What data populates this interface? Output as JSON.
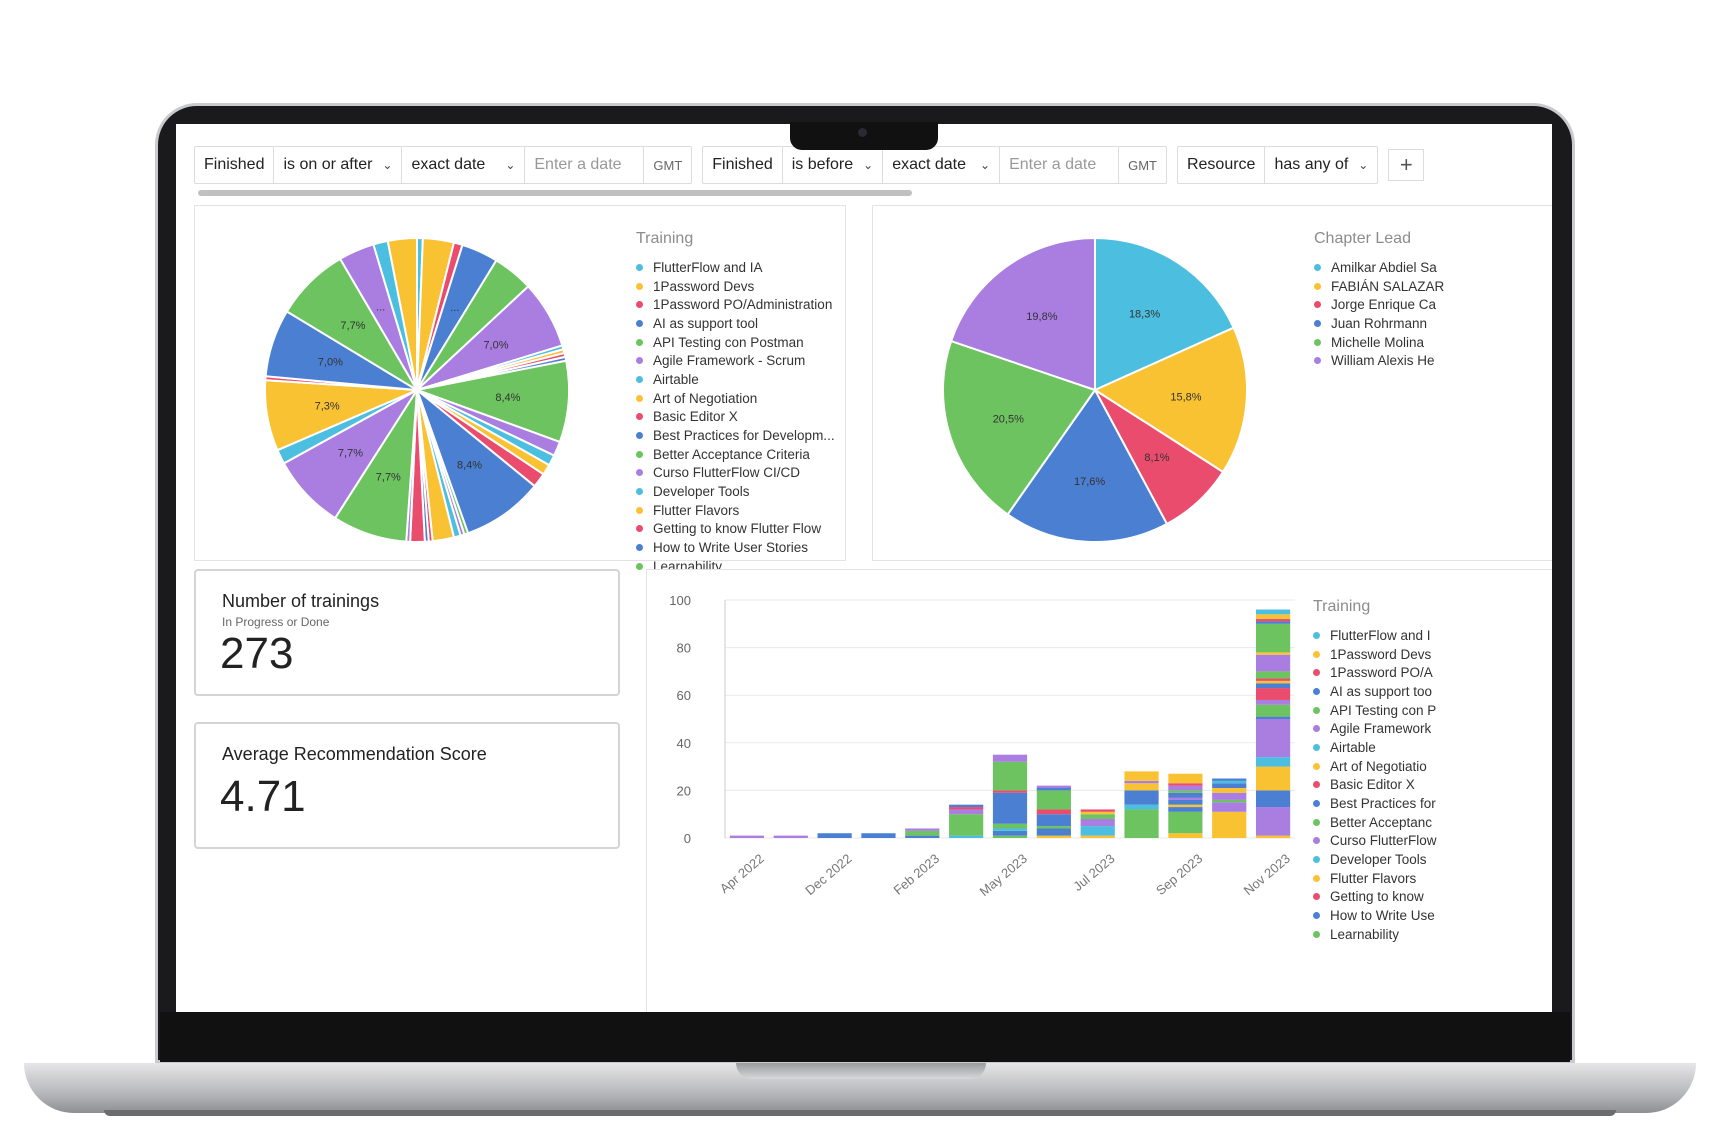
{
  "filters": [
    {
      "field": "Finished",
      "operator": "is on or after",
      "mode": "exact date",
      "placeholder": "Enter a date",
      "tz": "GMT"
    },
    {
      "field": "Finished",
      "operator": "is before",
      "mode": "exact date",
      "placeholder": "Enter a date",
      "tz": "GMT"
    },
    {
      "field": "Resource",
      "operator": "has any of"
    }
  ],
  "colors": {
    "cyan": "#4cbfe0",
    "yellow": "#f9c233",
    "pink": "#ea4c6d",
    "blue": "#4a7fd1",
    "green": "#6cc35f",
    "purple": "#a97ee0"
  },
  "training_chart": {
    "chart_data": {
      "type": "pie",
      "legend_title": "Training",
      "legend": [
        "FlutterFlow and IA",
        "1Password Devs",
        "1Password PO/Administration",
        "AI as support tool",
        "API Testing con Postman",
        "Agile Framework - Scrum",
        "Airtable",
        "Art of Negotiation",
        "Basic Editor X",
        "Best Practices for Developm...",
        "Better Acceptance Criteria",
        "Curso FlutterFlow CI/CD",
        "Developer Tools",
        "Flutter Flavors",
        "Getting to know Flutter Flow",
        "How to Write User Stories",
        "Learnability"
      ],
      "slices": [
        {
          "value": 0.6,
          "color": "#4cbfe0",
          "label": ""
        },
        {
          "value": 3.2,
          "color": "#f9c233",
          "label": ""
        },
        {
          "value": 0.9,
          "color": "#ea4c6d",
          "label": ""
        },
        {
          "value": 3.8,
          "color": "#4a7fd1",
          "label": "..."
        },
        {
          "value": 4.2,
          "color": "#6cc35f",
          "label": ""
        },
        {
          "value": 7.0,
          "color": "#a97ee0",
          "label": "7,0%"
        },
        {
          "value": 0.4,
          "color": "#4cbfe0",
          "label": ""
        },
        {
          "value": 0.4,
          "color": "#f9c233",
          "label": ""
        },
        {
          "value": 0.4,
          "color": "#ea4c6d",
          "label": ""
        },
        {
          "value": 0.4,
          "color": "#4a7fd1",
          "label": ""
        },
        {
          "value": 8.4,
          "color": "#6cc35f",
          "label": "8,4%"
        },
        {
          "value": 1.5,
          "color": "#a97ee0",
          "label": ""
        },
        {
          "value": 1.1,
          "color": "#4cbfe0",
          "label": ""
        },
        {
          "value": 1.1,
          "color": "#f9c233",
          "label": ""
        },
        {
          "value": 1.5,
          "color": "#ea4c6d",
          "label": ""
        },
        {
          "value": 8.4,
          "color": "#4a7fd1",
          "label": "8,4%"
        },
        {
          "value": 0.4,
          "color": "#6cc35f",
          "label": ""
        },
        {
          "value": 0.4,
          "color": "#a97ee0",
          "label": ""
        },
        {
          "value": 0.7,
          "color": "#4cbfe0",
          "label": ""
        },
        {
          "value": 2.2,
          "color": "#f9c233",
          "label": ""
        },
        {
          "value": 0.4,
          "color": "#ea4c6d",
          "label": ""
        },
        {
          "value": 0.4,
          "color": "#4a7fd1",
          "label": ""
        },
        {
          "value": 1.5,
          "color": "#ea4c6d",
          "label": ""
        },
        {
          "value": 0.4,
          "color": "#a97ee0",
          "label": ""
        },
        {
          "value": 7.7,
          "color": "#6cc35f",
          "label": "7,7%"
        },
        {
          "value": 7.7,
          "color": "#a97ee0",
          "label": "7,7%"
        },
        {
          "value": 1.5,
          "color": "#4cbfe0",
          "label": ""
        },
        {
          "value": 7.3,
          "color": "#f9c233",
          "label": "7,3%"
        },
        {
          "value": 0.4,
          "color": "#ea4c6d",
          "label": ""
        },
        {
          "value": 7.0,
          "color": "#4a7fd1",
          "label": "7,0%"
        },
        {
          "value": 7.7,
          "color": "#6cc35f",
          "label": "7,7%"
        },
        {
          "value": 3.7,
          "color": "#a97ee0",
          "label": "..."
        },
        {
          "value": 1.5,
          "color": "#4cbfe0",
          "label": ""
        },
        {
          "value": 3.0,
          "color": "#f9c233",
          "label": ""
        }
      ]
    }
  },
  "lead_chart": {
    "chart_data": {
      "type": "pie",
      "legend_title": "Chapter Lead",
      "legend": [
        "Amilkar Abdiel Sa",
        "FABIÁN SALAZAR",
        "Jorge Enrique Ca",
        "Juan Rohrmann",
        "Michelle Molina",
        "William Alexis He"
      ],
      "slices": [
        {
          "value": 18.3,
          "color": "#4cbfe0",
          "label": "18,3%"
        },
        {
          "value": 15.8,
          "color": "#f9c233",
          "label": "15,8%"
        },
        {
          "value": 8.1,
          "color": "#ea4c6d",
          "label": "8,1%"
        },
        {
          "value": 17.6,
          "color": "#4a7fd1",
          "label": "17,6%"
        },
        {
          "value": 20.5,
          "color": "#6cc35f",
          "label": "20,5%"
        },
        {
          "value": 19.8,
          "color": "#a97ee0",
          "label": "19,8%"
        }
      ]
    }
  },
  "kpis": {
    "trainings": {
      "title": "Number of trainings",
      "subtitle": "In Progress or Done",
      "value": "273"
    },
    "score": {
      "title": "Average Recommendation Score",
      "value": "4.71"
    }
  },
  "bar_chart": {
    "chart_data": {
      "type": "bar",
      "stacked": true,
      "legend_title": "Training",
      "legend": [
        "FlutterFlow and I",
        "1Password Devs",
        "1Password PO/A",
        "AI as support too",
        "API Testing con P",
        "Agile Framework",
        "Airtable",
        "Art of Negotiatio",
        "Basic Editor X",
        "Best Practices for",
        "Better Acceptanc",
        "Curso FlutterFlow",
        "Developer Tools",
        "Flutter Flavors",
        "Getting to know",
        "How to Write Use",
        "Learnability"
      ],
      "ylim": [
        0,
        100
      ],
      "yticks": [
        0,
        20,
        40,
        60,
        80,
        100
      ],
      "xtick_labels": [
        "Apr 2022",
        "Dec 2022",
        "Feb 2023",
        "May 2023",
        "Jul 2023",
        "Sep 2023",
        "Nov 2023"
      ],
      "categories": [
        "Apr 2022",
        "Aug 2022",
        "Dec 2022",
        "Jan 2023",
        "Feb 2023",
        "Apr 2023",
        "May 2023",
        "Jun 2023",
        "Jul 2023",
        "Aug 2023",
        "Sep 2023",
        "Oct 2023",
        "Nov 2023"
      ],
      "stacks": [
        [
          {
            "v": 1,
            "c": "#a97ee0"
          }
        ],
        [
          {
            "v": 1,
            "c": "#a97ee0"
          }
        ],
        [
          {
            "v": 2,
            "c": "#4a7fd1"
          }
        ],
        [
          {
            "v": 2,
            "c": "#4a7fd1"
          }
        ],
        [
          {
            "v": 1,
            "c": "#4a7fd1"
          },
          {
            "v": 2,
            "c": "#6cc35f"
          },
          {
            "v": 1,
            "c": "#a97ee0"
          }
        ],
        [
          {
            "v": 1,
            "c": "#4cbfe0"
          },
          {
            "v": 9,
            "c": "#6cc35f"
          },
          {
            "v": 2,
            "c": "#a97ee0"
          },
          {
            "v": 1,
            "c": "#ea4c6d"
          },
          {
            "v": 1,
            "c": "#4a7fd1"
          }
        ],
        [
          {
            "v": 1,
            "c": "#6cc35f"
          },
          {
            "v": 2,
            "c": "#4a7fd1"
          },
          {
            "v": 1,
            "c": "#4cbfe0"
          },
          {
            "v": 2,
            "c": "#6cc35f"
          },
          {
            "v": 13,
            "c": "#4a7fd1"
          },
          {
            "v": 1,
            "c": "#ea4c6d"
          },
          {
            "v": 12,
            "c": "#6cc35f"
          },
          {
            "v": 3,
            "c": "#a97ee0"
          }
        ],
        [
          {
            "v": 1,
            "c": "#f9c233"
          },
          {
            "v": 3,
            "c": "#4a7fd1"
          },
          {
            "v": 1,
            "c": "#6cc35f"
          },
          {
            "v": 5,
            "c": "#4a7fd1"
          },
          {
            "v": 2,
            "c": "#ea4c6d"
          },
          {
            "v": 8,
            "c": "#6cc35f"
          },
          {
            "v": 1,
            "c": "#4a7fd1"
          },
          {
            "v": 1,
            "c": "#a97ee0"
          }
        ],
        [
          {
            "v": 1,
            "c": "#f9c233"
          },
          {
            "v": 4,
            "c": "#4cbfe0"
          },
          {
            "v": 3,
            "c": "#a97ee0"
          },
          {
            "v": 2,
            "c": "#6cc35f"
          },
          {
            "v": 1,
            "c": "#f9c233"
          },
          {
            "v": 1,
            "c": "#ea4c6d"
          }
        ],
        [
          {
            "v": 12,
            "c": "#6cc35f"
          },
          {
            "v": 2,
            "c": "#4cbfe0"
          },
          {
            "v": 6,
            "c": "#4a7fd1"
          },
          {
            "v": 3,
            "c": "#f9c233"
          },
          {
            "v": 1,
            "c": "#a97ee0"
          },
          {
            "v": 4,
            "c": "#f9c233"
          }
        ],
        [
          {
            "v": 2,
            "c": "#f9c233"
          },
          {
            "v": 9,
            "c": "#6cc35f"
          },
          {
            "v": 2,
            "c": "#4a7fd1"
          },
          {
            "v": 1,
            "c": "#f9c233"
          },
          {
            "v": 2,
            "c": "#4a7fd1"
          },
          {
            "v": 1,
            "c": "#a97ee0"
          },
          {
            "v": 2,
            "c": "#4a7fd1"
          },
          {
            "v": 1,
            "c": "#6cc35f"
          },
          {
            "v": 2,
            "c": "#a97ee0"
          },
          {
            "v": 1,
            "c": "#ea4c6d"
          },
          {
            "v": 4,
            "c": "#f9c233"
          }
        ],
        [
          {
            "v": 11,
            "c": "#f9c233"
          },
          {
            "v": 4,
            "c": "#a97ee0"
          },
          {
            "v": 1,
            "c": "#6cc35f"
          },
          {
            "v": 3,
            "c": "#a97ee0"
          },
          {
            "v": 2,
            "c": "#f9c233"
          },
          {
            "v": 2,
            "c": "#4a7fd1"
          },
          {
            "v": 1,
            "c": "#4cbfe0"
          },
          {
            "v": 1,
            "c": "#4a7fd1"
          }
        ],
        [
          {
            "v": 1,
            "c": "#f9c233"
          },
          {
            "v": 12,
            "c": "#a97ee0"
          },
          {
            "v": 7,
            "c": "#4a7fd1"
          },
          {
            "v": 10,
            "c": "#f9c233"
          },
          {
            "v": 4,
            "c": "#4cbfe0"
          },
          {
            "v": 16,
            "c": "#a97ee0"
          },
          {
            "v": 1,
            "c": "#4a7fd1"
          },
          {
            "v": 5,
            "c": "#6cc35f"
          },
          {
            "v": 2,
            "c": "#a97ee0"
          },
          {
            "v": 5,
            "c": "#ea4c6d"
          },
          {
            "v": 2,
            "c": "#4a7fd1"
          },
          {
            "v": 1,
            "c": "#f9c233"
          },
          {
            "v": 1,
            "c": "#ea4c6d"
          },
          {
            "v": 3,
            "c": "#6cc35f"
          },
          {
            "v": 7,
            "c": "#a97ee0"
          },
          {
            "v": 1,
            "c": "#f9c233"
          },
          {
            "v": 12,
            "c": "#6cc35f"
          },
          {
            "v": 1,
            "c": "#4a7fd1"
          },
          {
            "v": 1,
            "c": "#ea4c6d"
          },
          {
            "v": 2,
            "c": "#f9c233"
          },
          {
            "v": 2,
            "c": "#4cbfe0"
          }
        ]
      ]
    }
  }
}
